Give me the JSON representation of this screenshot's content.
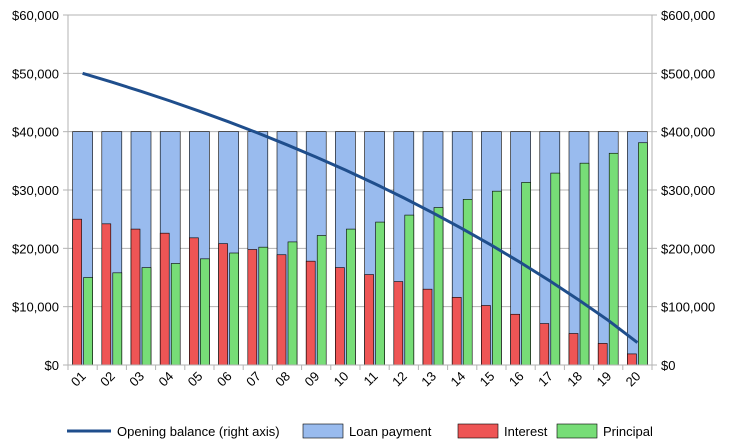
{
  "chart_data": {
    "type": "bar",
    "categories": [
      "01",
      "02",
      "03",
      "04",
      "05",
      "06",
      "07",
      "08",
      "09",
      "10",
      "11",
      "12",
      "13",
      "14",
      "15",
      "16",
      "17",
      "18",
      "19",
      "20"
    ],
    "series": [
      {
        "name": "Loan payment",
        "axis": "left",
        "color": "#99bbee",
        "values": [
          40000,
          40000,
          40000,
          40000,
          40000,
          40000,
          40000,
          40000,
          40000,
          40000,
          40000,
          40000,
          40000,
          40000,
          40000,
          40000,
          40000,
          40000,
          40000,
          40000
        ]
      },
      {
        "name": "Interest",
        "axis": "left",
        "color": "#ee5555",
        "values": [
          25000,
          24200,
          23300,
          22600,
          21800,
          20800,
          19800,
          18900,
          17800,
          16700,
          15500,
          14300,
          13000,
          11600,
          10200,
          8700,
          7100,
          5400,
          3700,
          1900
        ]
      },
      {
        "name": "Principal",
        "axis": "left",
        "color": "#77dd77",
        "values": [
          15000,
          15800,
          16700,
          17400,
          18200,
          19200,
          20200,
          21100,
          22200,
          23300,
          24500,
          25700,
          27000,
          28400,
          29800,
          31300,
          32900,
          34600,
          36300,
          38100
        ]
      },
      {
        "name": "Opening balance (right axis)",
        "axis": "right",
        "type": "line",
        "color": "#1f4e8c",
        "values": [
          500000,
          485000,
          469200,
          452500,
          435100,
          416900,
          397700,
          377500,
          356400,
          334200,
          310900,
          286400,
          260700,
          233700,
          205300,
          175500,
          144200,
          111300,
          76700,
          38400
        ]
      }
    ],
    "left_axis": {
      "min": 0,
      "max": 60000,
      "ticks": [
        "$0",
        "$10,000",
        "$20,000",
        "$30,000",
        "$40,000",
        "$50,000",
        "$60,000"
      ]
    },
    "right_axis": {
      "min": 0,
      "max": 600000,
      "ticks": [
        "$0",
        "$100,000",
        "$200,000",
        "$300,000",
        "$400,000",
        "$500,000",
        "$600,000"
      ]
    },
    "grid": true,
    "legend_position": "bottom"
  }
}
